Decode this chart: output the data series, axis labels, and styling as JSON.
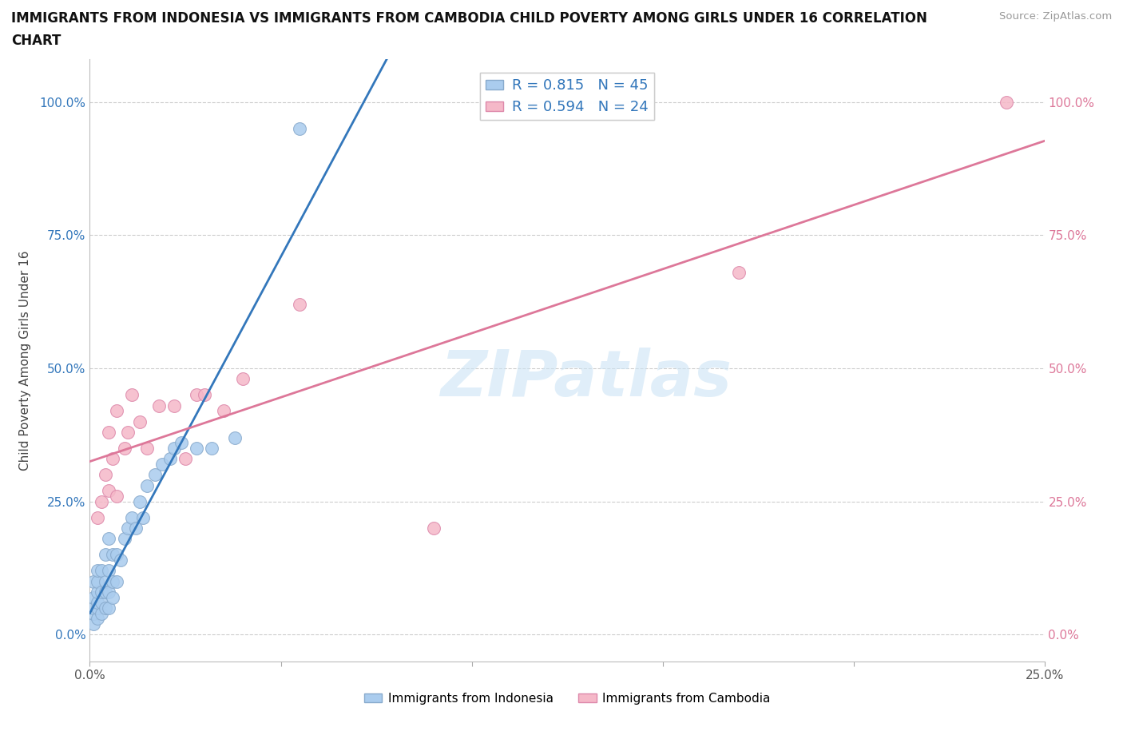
{
  "title_line1": "IMMIGRANTS FROM INDONESIA VS IMMIGRANTS FROM CAMBODIA CHILD POVERTY AMONG GIRLS UNDER 16 CORRELATION",
  "title_line2": "CHART",
  "source": "Source: ZipAtlas.com",
  "ylabel_label": "Child Poverty Among Girls Under 16",
  "xlim": [
    0.0,
    0.25
  ],
  "ylim": [
    -0.05,
    1.08
  ],
  "xticks": [
    0.0,
    0.05,
    0.1,
    0.15,
    0.2,
    0.25
  ],
  "yticks": [
    0.0,
    0.25,
    0.5,
    0.75,
    1.0
  ],
  "ytick_labels": [
    "0.0%",
    "25.0%",
    "50.0%",
    "75.0%",
    "100.0%"
  ],
  "xtick_labels": [
    "0.0%",
    "",
    "",
    "",
    "",
    "25.0%"
  ],
  "watermark": "ZIPatlas",
  "indonesia_color": "#aaccee",
  "indonesia_edge": "#88aacc",
  "cambodia_color": "#f5b8c8",
  "cambodia_edge": "#dd88aa",
  "indonesia_line_color": "#3377bb",
  "cambodia_line_color": "#dd7799",
  "R_indonesia": 0.815,
  "N_indonesia": 45,
  "R_cambodia": 0.594,
  "N_cambodia": 24,
  "indonesia_x": [
    0.001,
    0.001,
    0.001,
    0.001,
    0.001,
    0.002,
    0.002,
    0.002,
    0.002,
    0.002,
    0.002,
    0.003,
    0.003,
    0.003,
    0.003,
    0.004,
    0.004,
    0.004,
    0.004,
    0.005,
    0.005,
    0.005,
    0.005,
    0.006,
    0.006,
    0.006,
    0.007,
    0.007,
    0.008,
    0.009,
    0.01,
    0.011,
    0.012,
    0.013,
    0.014,
    0.015,
    0.017,
    0.019,
    0.021,
    0.022,
    0.024,
    0.028,
    0.032,
    0.038,
    0.055
  ],
  "indonesia_y": [
    0.02,
    0.04,
    0.05,
    0.07,
    0.1,
    0.03,
    0.05,
    0.06,
    0.08,
    0.1,
    0.12,
    0.04,
    0.06,
    0.08,
    0.12,
    0.05,
    0.08,
    0.1,
    0.15,
    0.05,
    0.08,
    0.12,
    0.18,
    0.07,
    0.1,
    0.15,
    0.1,
    0.15,
    0.14,
    0.18,
    0.2,
    0.22,
    0.2,
    0.25,
    0.22,
    0.28,
    0.3,
    0.32,
    0.33,
    0.35,
    0.36,
    0.35,
    0.35,
    0.37,
    0.95
  ],
  "cambodia_x": [
    0.002,
    0.003,
    0.004,
    0.005,
    0.005,
    0.006,
    0.007,
    0.007,
    0.009,
    0.01,
    0.011,
    0.013,
    0.015,
    0.018,
    0.022,
    0.025,
    0.028,
    0.03,
    0.035,
    0.04,
    0.055,
    0.09,
    0.17,
    0.24
  ],
  "cambodia_y": [
    0.22,
    0.25,
    0.3,
    0.27,
    0.38,
    0.33,
    0.26,
    0.42,
    0.35,
    0.38,
    0.45,
    0.4,
    0.35,
    0.43,
    0.43,
    0.33,
    0.45,
    0.45,
    0.42,
    0.48,
    0.62,
    0.2,
    0.68,
    1.0
  ],
  "grid_color": "#cccccc",
  "bg_color": "#ffffff"
}
